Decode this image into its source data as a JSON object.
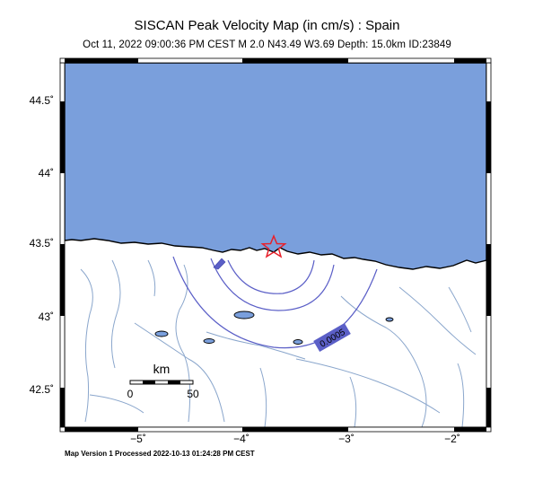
{
  "map": {
    "title": "SISCAN Peak Velocity Map (in cm/s) : Spain",
    "subtitle": "Oct 11, 2022 09:00:36 PM CEST   M 2.0   N43.49 W3.69   Depth: 15.0km   ID:23849",
    "footer": "Map Version 1 Processed 2022-10-13 01:24:28 PM CEST",
    "lat_ticks": [
      "44.5˚",
      "44˚",
      "43.5˚",
      "43˚",
      "42.5˚"
    ],
    "lon_ticks": [
      "−5˚",
      "−4˚",
      "−3˚",
      "−2˚"
    ],
    "contour_label": "0.0005",
    "scale_bar": {
      "unit": "km",
      "start": "0",
      "end": "50"
    },
    "colors": {
      "sea": "#7a9fdc",
      "land": "#ffffff",
      "river": "#8aa6cc",
      "contour": "#5b5fc7",
      "epicenter": "#e8202a"
    },
    "epicenter_icon": "star-icon"
  }
}
